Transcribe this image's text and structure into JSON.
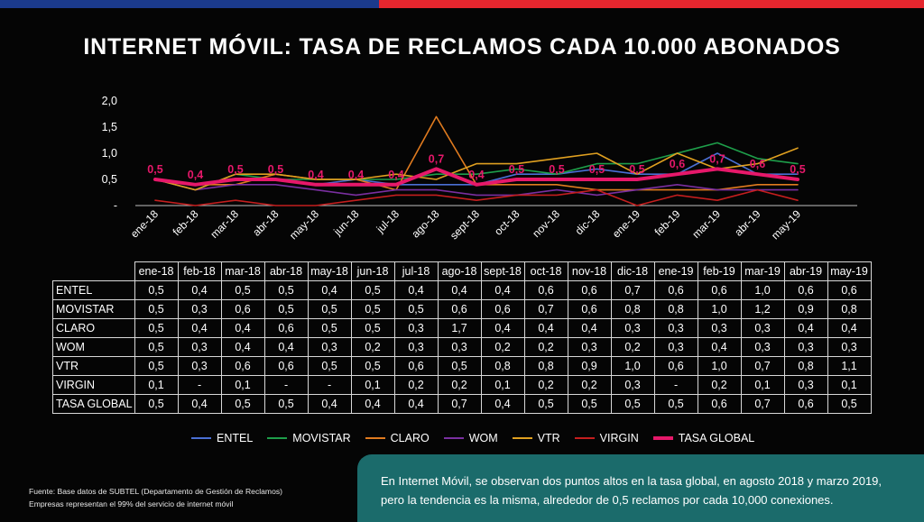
{
  "title": "INTERNET MÓVIL: TASA DE RECLAMOS CADA 10.000 ABONADOS",
  "colors": {
    "ENTEL": "#4a6fd4",
    "MOVISTAR": "#1e9e4a",
    "CLARO": "#e07b1f",
    "WOM": "#7a2fa0",
    "VTR": "#e0a020",
    "VIRGIN": "#c41e1e",
    "TASA GLOBAL": "#e6186a"
  },
  "chart_data": {
    "type": "line",
    "categories": [
      "ene-18",
      "feb-18",
      "mar-18",
      "abr-18",
      "may-18",
      "jun-18",
      "jul-18",
      "ago-18",
      "sept-18",
      "oct-18",
      "nov-18",
      "dic-18",
      "ene-19",
      "feb-19",
      "mar-19",
      "abr-19",
      "may-19"
    ],
    "ylim": [
      0,
      2.0
    ],
    "yticks": [
      "-",
      "0,5",
      "1,0",
      "1,5",
      "2,0"
    ],
    "series": [
      {
        "name": "ENTEL",
        "values": [
          0.5,
          0.4,
          0.5,
          0.5,
          0.4,
          0.5,
          0.4,
          0.4,
          0.4,
          0.6,
          0.6,
          0.7,
          0.6,
          0.6,
          1.0,
          0.6,
          0.6
        ]
      },
      {
        "name": "MOVISTAR",
        "values": [
          0.5,
          0.3,
          0.6,
          0.5,
          0.5,
          0.5,
          0.5,
          0.6,
          0.6,
          0.7,
          0.6,
          0.8,
          0.8,
          1.0,
          1.2,
          0.9,
          0.8
        ]
      },
      {
        "name": "CLARO",
        "values": [
          0.5,
          0.4,
          0.4,
          0.6,
          0.5,
          0.5,
          0.3,
          1.7,
          0.4,
          0.4,
          0.4,
          0.3,
          0.3,
          0.3,
          0.3,
          0.4,
          0.4
        ]
      },
      {
        "name": "WOM",
        "values": [
          0.5,
          0.3,
          0.4,
          0.4,
          0.3,
          0.2,
          0.3,
          0.3,
          0.2,
          0.2,
          0.3,
          0.2,
          0.3,
          0.4,
          0.3,
          0.3,
          0.3
        ]
      },
      {
        "name": "VTR",
        "values": [
          0.5,
          0.3,
          0.6,
          0.6,
          0.5,
          0.5,
          0.6,
          0.5,
          0.8,
          0.8,
          0.9,
          1.0,
          0.6,
          1.0,
          0.7,
          0.8,
          1.1
        ]
      },
      {
        "name": "VIRGIN",
        "values": [
          0.1,
          null,
          0.1,
          null,
          null,
          0.1,
          0.2,
          0.2,
          0.1,
          0.2,
          0.2,
          0.3,
          null,
          0.2,
          0.1,
          0.3,
          0.1
        ]
      },
      {
        "name": "TASA GLOBAL",
        "values": [
          0.5,
          0.4,
          0.5,
          0.5,
          0.4,
          0.4,
          0.4,
          0.7,
          0.4,
          0.5,
          0.5,
          0.5,
          0.5,
          0.6,
          0.7,
          0.6,
          0.5
        ]
      }
    ],
    "data_labels": [
      "0,5",
      "0,4",
      "0,5",
      "0,5",
      "0,4",
      "0,4",
      "0,4",
      "0,7",
      "0,4",
      "0,5",
      "0,5",
      "0,5",
      "0,5",
      "0,6",
      "0,7",
      "0,6",
      "0,5"
    ]
  },
  "table": {
    "headers": [
      "ene-18",
      "feb-18",
      "mar-18",
      "abr-18",
      "may-18",
      "jun-18",
      "jul-18",
      "ago-18",
      "sept-18",
      "oct-18",
      "nov-18",
      "dic-18",
      "ene-19",
      "feb-19",
      "mar-19",
      "abr-19",
      "may-19"
    ],
    "rows": [
      {
        "label": "ENTEL",
        "cells": [
          "0,5",
          "0,4",
          "0,5",
          "0,5",
          "0,4",
          "0,5",
          "0,4",
          "0,4",
          "0,4",
          "0,6",
          "0,6",
          "0,7",
          "0,6",
          "0,6",
          "1,0",
          "0,6",
          "0,6"
        ]
      },
      {
        "label": "MOVISTAR",
        "cells": [
          "0,5",
          "0,3",
          "0,6",
          "0,5",
          "0,5",
          "0,5",
          "0,5",
          "0,6",
          "0,6",
          "0,7",
          "0,6",
          "0,8",
          "0,8",
          "1,0",
          "1,2",
          "0,9",
          "0,8"
        ]
      },
      {
        "label": "CLARO",
        "cells": [
          "0,5",
          "0,4",
          "0,4",
          "0,6",
          "0,5",
          "0,5",
          "0,3",
          "1,7",
          "0,4",
          "0,4",
          "0,4",
          "0,3",
          "0,3",
          "0,3",
          "0,3",
          "0,4",
          "0,4"
        ]
      },
      {
        "label": "WOM",
        "cells": [
          "0,5",
          "0,3",
          "0,4",
          "0,4",
          "0,3",
          "0,2",
          "0,3",
          "0,3",
          "0,2",
          "0,2",
          "0,3",
          "0,2",
          "0,3",
          "0,4",
          "0,3",
          "0,3",
          "0,3"
        ]
      },
      {
        "label": "VTR",
        "cells": [
          "0,5",
          "0,3",
          "0,6",
          "0,6",
          "0,5",
          "0,5",
          "0,6",
          "0,5",
          "0,8",
          "0,8",
          "0,9",
          "1,0",
          "0,6",
          "1,0",
          "0,7",
          "0,8",
          "1,1"
        ]
      },
      {
        "label": "VIRGIN",
        "cells": [
          "0,1",
          "-",
          "0,1",
          "-",
          "-",
          "0,1",
          "0,2",
          "0,2",
          "0,1",
          "0,2",
          "0,2",
          "0,3",
          "-",
          "0,2",
          "0,1",
          "0,3",
          "0,1"
        ]
      },
      {
        "label": "TASA GLOBAL",
        "cells": [
          "0,5",
          "0,4",
          "0,5",
          "0,5",
          "0,4",
          "0,4",
          "0,4",
          "0,7",
          "0,4",
          "0,5",
          "0,5",
          "0,5",
          "0,5",
          "0,6",
          "0,7",
          "0,6",
          "0,5"
        ]
      }
    ]
  },
  "legend": [
    "ENTEL",
    "MOVISTAR",
    "CLARO",
    "WOM",
    "VTR",
    "VIRGIN",
    "TASA GLOBAL"
  ],
  "footnote": {
    "line1": "Fuente: Base datos de SUBTEL (Departamento de Gestión de Reclamos)",
    "line2": "Empresas representan el 99% del servicio de internet móvil"
  },
  "callout": "En Internet Móvil, se observan dos puntos altos en la tasa global, en agosto 2018 y marzo 2019, pero la tendencia es la misma, alrededor de 0,5 reclamos por cada 10,000 conexiones."
}
